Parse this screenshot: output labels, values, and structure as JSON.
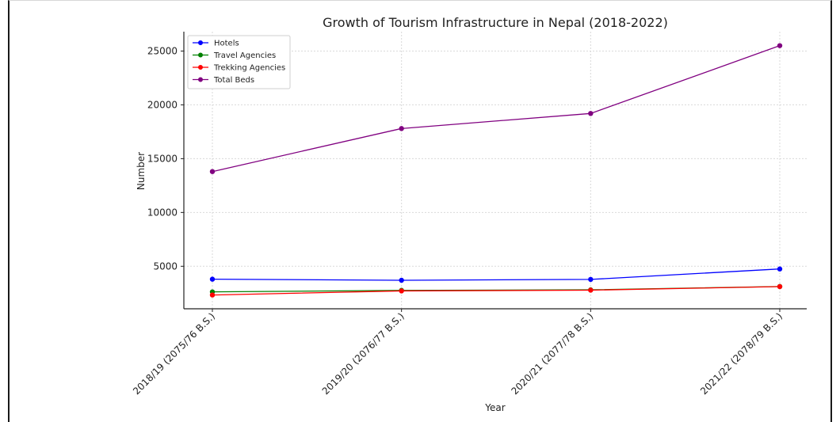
{
  "chart_data": {
    "type": "line",
    "title": "Growth of Tourism Infrastructure in Nepal (2018-2022)",
    "xlabel": "Year",
    "ylabel": "Number",
    "categories": [
      "2018/19 (2075/76 B.S.)",
      "2019/20 (2076/77 B.S.)",
      "2020/21 (2077/78 B.S.)",
      "2021/22 (2078/79 B.S.)"
    ],
    "series": [
      {
        "name": "Hotels",
        "color": "#0000ff",
        "values": [
          3800,
          3700,
          3780,
          4750
        ]
      },
      {
        "name": "Travel Agencies",
        "color": "#008000",
        "values": [
          2620,
          2760,
          2810,
          3120
        ]
      },
      {
        "name": "Trekking Agencies",
        "color": "#ff0000",
        "values": [
          2330,
          2710,
          2780,
          3110
        ]
      },
      {
        "name": "Total Beds",
        "color": "#800080",
        "values": [
          13800,
          17800,
          19200,
          25500
        ]
      }
    ],
    "ylim": [
      1050,
      26800
    ],
    "yticks": [
      5000,
      10000,
      15000,
      20000,
      25000
    ],
    "grid": true,
    "legend_position": "top-left"
  }
}
